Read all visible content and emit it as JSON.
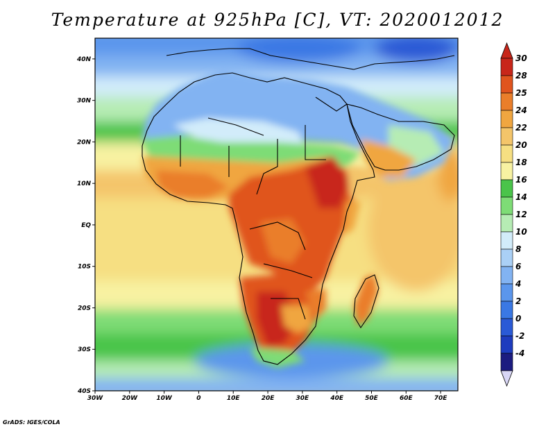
{
  "title": "Temperature at 925hPa [C], VT: 2020012012",
  "credit": "GrADS: IGES/COLA",
  "chart_data": {
    "type": "heatmap",
    "variable": "Temperature at 925hPa",
    "units": "C",
    "valid_time": "2020012012",
    "x_axis": {
      "range": [
        -30,
        75
      ],
      "ticks": [
        -30,
        -20,
        -10,
        0,
        10,
        20,
        30,
        40,
        50,
        60,
        70
      ],
      "tick_labels": [
        "30W",
        "20W",
        "10W",
        "0",
        "10E",
        "20E",
        "30E",
        "40E",
        "50E",
        "60E",
        "70E"
      ]
    },
    "y_axis": {
      "range": [
        -40,
        45
      ],
      "ticks": [
        40,
        30,
        20,
        10,
        0,
        -10,
        -20,
        -30,
        -40
      ],
      "tick_labels": [
        "40N",
        "30N",
        "20N",
        "10N",
        "EQ",
        "10S",
        "20S",
        "30S",
        "40S"
      ]
    },
    "colorbar": {
      "levels": [
        -4,
        -2,
        0,
        2,
        4,
        6,
        8,
        10,
        12,
        14,
        16,
        18,
        20,
        22,
        24,
        25,
        28,
        30
      ],
      "labels": [
        "-4",
        "-2",
        "0",
        "2",
        "4",
        "6",
        "8",
        "10",
        "12",
        "14",
        "16",
        "18",
        "20",
        "22",
        "24",
        "25",
        "28",
        "30"
      ],
      "colors": [
        "#1c1c80",
        "#1e3cbe",
        "#2a5ad6",
        "#3a78e4",
        "#5b96ec",
        "#82b3f2",
        "#aad0f6",
        "#d2ecfa",
        "#b6ecb4",
        "#7edc76",
        "#4ac44a",
        "#f8f2a2",
        "#f6df82",
        "#f4c56a",
        "#f0a640",
        "#ea7e2a",
        "#e0541e",
        "#c8261a"
      ],
      "below_color": "#d8d6f6"
    },
    "features": [
      "Africa",
      "Arabian Peninsula",
      "Madagascar",
      "Mediterranean Sea",
      "Red Sea",
      "Atlantic Ocean",
      "Indian Ocean"
    ]
  }
}
